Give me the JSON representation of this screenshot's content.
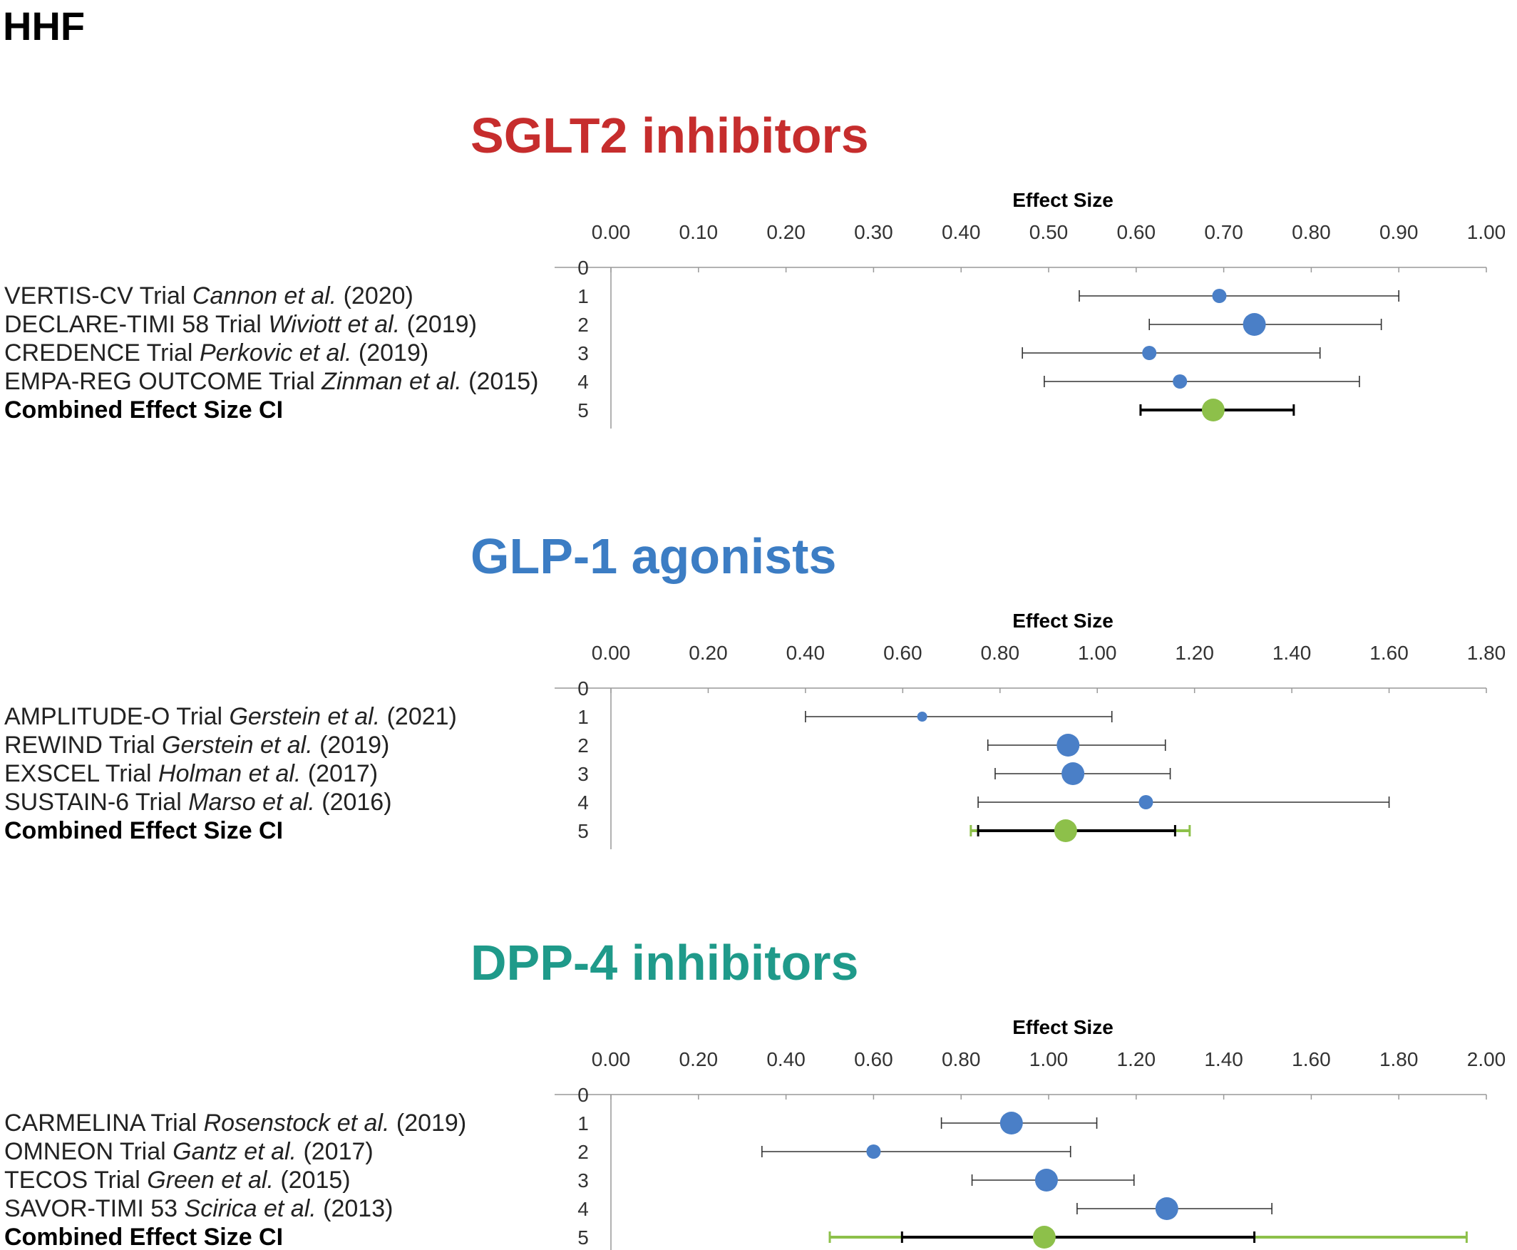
{
  "page_title": "HHF",
  "colors": {
    "trial_point": "#4a7fc7",
    "combined_point": "#8dc04a",
    "ci_line": "#333333",
    "combined_ci": "#000000",
    "combined_ci_outer": "#8dc04a"
  },
  "chart_data": [
    {
      "type": "forest",
      "title": "SGLT2 inhibitors",
      "title_color": "#c62d2d",
      "xlabel": "Effect Size",
      "xlim": [
        0,
        1.0
      ],
      "xticks": [
        "0.00",
        "0.10",
        "0.20",
        "0.30",
        "0.40",
        "0.50",
        "0.60",
        "0.70",
        "0.80",
        "0.90",
        "1.00"
      ],
      "row_numbers": [
        "0",
        "1",
        "2",
        "3",
        "4",
        "5"
      ],
      "rows": [
        {
          "label": "VERTIS-CV Trial ",
          "authors": "Cannon et al.",
          "year": " (2020)",
          "est": 0.695,
          "lo": 0.535,
          "hi": 0.9,
          "size": "small",
          "kind": "trial"
        },
        {
          "label": "DECLARE-TIMI 58 Trial ",
          "authors": "Wiviott et al.",
          "year": " (2019)",
          "est": 0.735,
          "lo": 0.615,
          "hi": 0.88,
          "size": "large",
          "kind": "trial"
        },
        {
          "label": "CREDENCE Trial ",
          "authors": "Perkovic et al.",
          "year": " (2019)",
          "est": 0.615,
          "lo": 0.47,
          "hi": 0.81,
          "size": "small",
          "kind": "trial"
        },
        {
          "label": "EMPA-REG OUTCOME Trial ",
          "authors": "Zinman et al.",
          "year": " (2015)",
          "est": 0.65,
          "lo": 0.495,
          "hi": 0.855,
          "size": "small",
          "kind": "trial"
        },
        {
          "label": "Combined Effect Size CI",
          "authors": "",
          "year": "",
          "est": 0.688,
          "lo": 0.605,
          "hi": 0.78,
          "outer_lo": null,
          "outer_hi": null,
          "size": "combined",
          "kind": "combined"
        }
      ]
    },
    {
      "type": "forest",
      "title": "GLP-1 agonists",
      "title_color": "#3c7dc4",
      "xlabel": "Effect Size",
      "xlim": [
        0,
        1.8
      ],
      "xticks": [
        "0.00",
        "0.20",
        "0.40",
        "0.60",
        "0.80",
        "1.00",
        "1.20",
        "1.40",
        "1.60",
        "1.80"
      ],
      "row_numbers": [
        "0",
        "1",
        "2",
        "3",
        "4",
        "5"
      ],
      "rows": [
        {
          "label": "AMPLITUDE-O Trial ",
          "authors": "Gerstein et al.",
          "year": " (2021)",
          "est": 0.64,
          "lo": 0.4,
          "hi": 1.03,
          "size": "tiny",
          "kind": "trial"
        },
        {
          "label": "REWIND Trial ",
          "authors": "Gerstein et al.",
          "year": " (2019)",
          "est": 0.94,
          "lo": 0.775,
          "hi": 1.14,
          "size": "large",
          "kind": "trial"
        },
        {
          "label": "EXSCEL Trial ",
          "authors": "Holman et al.",
          "year": " (2017)",
          "est": 0.95,
          "lo": 0.79,
          "hi": 1.15,
          "size": "large",
          "kind": "trial"
        },
        {
          "label": "SUSTAIN-6 Trial ",
          "authors": "Marso et al.",
          "year": " (2016)",
          "est": 1.1,
          "lo": 0.755,
          "hi": 1.6,
          "size": "small",
          "kind": "trial"
        },
        {
          "label": "Combined Effect Size CI",
          "authors": "",
          "year": "",
          "est": 0.935,
          "lo": 0.755,
          "hi": 1.16,
          "outer_lo": 0.74,
          "outer_hi": 1.19,
          "size": "combined",
          "kind": "combined"
        }
      ]
    },
    {
      "type": "forest",
      "title": "DPP-4 inhibitors",
      "title_color": "#1f9a8a",
      "xlabel": "Effect Size",
      "xlim": [
        0,
        2.0
      ],
      "xticks": [
        "0.00",
        "0.20",
        "0.40",
        "0.60",
        "0.80",
        "1.00",
        "1.20",
        "1.40",
        "1.60",
        "1.80",
        "2.00"
      ],
      "row_numbers": [
        "0",
        "1",
        "2",
        "3",
        "4",
        "5"
      ],
      "rows": [
        {
          "label": "CARMELINA Trial ",
          "authors": "Rosenstock et al.",
          "year": " (2019)",
          "est": 0.915,
          "lo": 0.755,
          "hi": 1.11,
          "size": "large",
          "kind": "trial"
        },
        {
          "label": "OMNEON Trial ",
          "authors": "Gantz et al.",
          "year": " (2017)",
          "est": 0.6,
          "lo": 0.345,
          "hi": 1.05,
          "size": "small",
          "kind": "trial"
        },
        {
          "label": "TECOS Trial ",
          "authors": "Green et al.",
          "year": " (2015)",
          "est": 0.995,
          "lo": 0.825,
          "hi": 1.195,
          "size": "large",
          "kind": "trial"
        },
        {
          "label": "SAVOR-TIMI 53 ",
          "authors": "Scirica et al.",
          "year": " (2013)",
          "est": 1.27,
          "lo": 1.065,
          "hi": 1.51,
          "size": "large",
          "kind": "trial"
        },
        {
          "label": "Combined Effect Size CI",
          "authors": "",
          "year": "",
          "est": 0.99,
          "lo": 0.665,
          "hi": 1.47,
          "outer_lo": 0.5,
          "outer_hi": 1.955,
          "size": "combined",
          "kind": "combined"
        }
      ]
    }
  ]
}
